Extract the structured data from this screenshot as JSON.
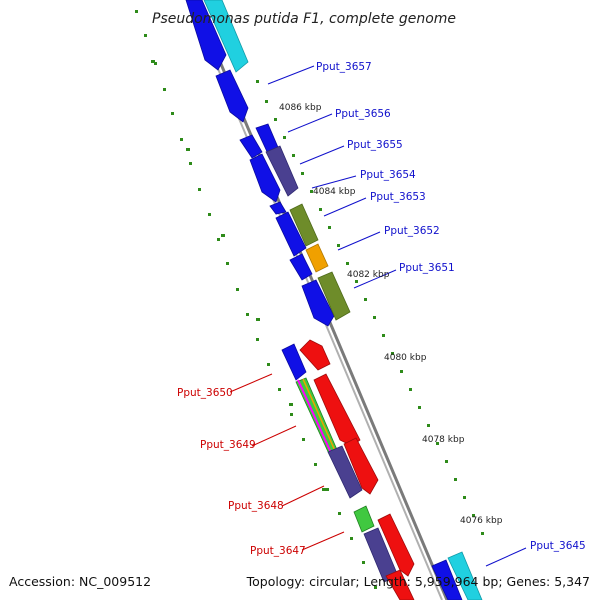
{
  "map": {
    "title": "Pseudomonas putida F1, complete genome",
    "footer_left": "Accession: NC_009512",
    "footer_right": "Topology: circular; Length: 5,959,964 bp; Genes: 5,347"
  },
  "ticks": [
    {
      "label": "4086 kbp"
    },
    {
      "label": "4084 kbp"
    },
    {
      "label": "4082 kbp"
    },
    {
      "label": "4080 kbp"
    },
    {
      "label": "4078 kbp"
    },
    {
      "label": "4076 kbp"
    }
  ],
  "labels": {
    "plus": [
      "Pput_3657",
      "Pput_3656",
      "Pput_3655",
      "Pput_3654",
      "Pput_3653",
      "Pput_3652",
      "Pput_3651",
      "Pput_3645"
    ],
    "minus": [
      "Pput_3650",
      "Pput_3649",
      "Pput_3648",
      "Pput_3647"
    ]
  },
  "colors": {
    "plus_label": "#1111cc",
    "minus_label": "#cc0000",
    "backbone": "#8a8a8a",
    "tick_dots": "#2e8b1a",
    "gene_blue": "#1010e6",
    "gene_cyan": "#20d0e0",
    "gene_navy": "#4a4090",
    "gene_olive": "#6e8c2a",
    "gene_orange": "#f0a000",
    "gene_red": "#ee1010",
    "gene_green": "#40c840"
  }
}
